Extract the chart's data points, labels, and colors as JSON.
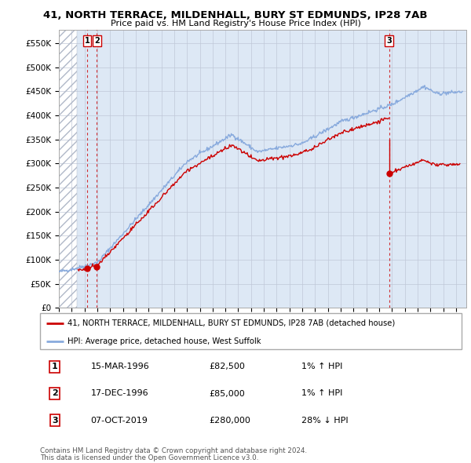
{
  "title": "41, NORTH TERRACE, MILDENHALL, BURY ST EDMUNDS, IP28 7AB",
  "subtitle": "Price paid vs. HM Land Registry's House Price Index (HPI)",
  "ylim": [
    0,
    577000
  ],
  "yticks": [
    0,
    50000,
    100000,
    150000,
    200000,
    250000,
    300000,
    350000,
    400000,
    450000,
    500000,
    550000
  ],
  "ytick_labels": [
    "£0",
    "£50K",
    "£100K",
    "£150K",
    "£200K",
    "£250K",
    "£300K",
    "£350K",
    "£400K",
    "£450K",
    "£500K",
    "£550K"
  ],
  "xlim_start": 1994.0,
  "xlim_end": 2025.8,
  "hatch_end": 1995.4,
  "sale_dates": [
    1996.21,
    1996.96,
    2019.77
  ],
  "sale_prices": [
    82500,
    85000,
    280000
  ],
  "sale_labels": [
    "1",
    "2",
    "3"
  ],
  "legend_property": "41, NORTH TERRACE, MILDENHALL, BURY ST EDMUNDS, IP28 7AB (detached house)",
  "legend_hpi": "HPI: Average price, detached house, West Suffolk",
  "table_rows": [
    [
      "1",
      "15-MAR-1996",
      "£82,500",
      "1% ↑ HPI"
    ],
    [
      "2",
      "17-DEC-1996",
      "£85,000",
      "1% ↑ HPI"
    ],
    [
      "3",
      "07-OCT-2019",
      "£280,000",
      "28% ↓ HPI"
    ]
  ],
  "footer": "Contains HM Land Registry data © Crown copyright and database right 2024.\nThis data is licensed under the Open Government Licence v3.0.",
  "property_line_color": "#cc0000",
  "hpi_line_color": "#88aadd",
  "bg_color": "#dde8f5",
  "sale_marker_color": "#cc0000",
  "dashed_line_color": "#cc0000",
  "grid_color": "#c0c8d8"
}
